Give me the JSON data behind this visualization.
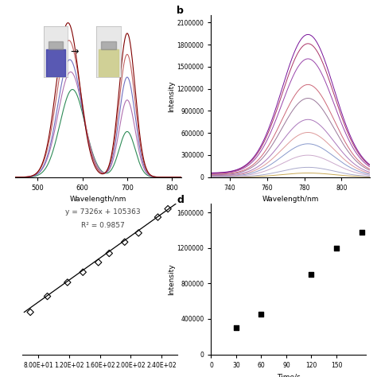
{
  "panel_a": {
    "xlabel": "Wavelength/nm",
    "xlim": [
      450,
      820
    ],
    "xticks": [
      500,
      600,
      700,
      800
    ],
    "curve_params": [
      {
        "color": "#2e8b57",
        "m1": 578,
        "s1": 28,
        "a1": 0.5,
        "m2": 700,
        "s2": 18,
        "a2": 0.26
      },
      {
        "color": "#b070b0",
        "m1": 574,
        "s1": 28,
        "a1": 0.6,
        "m2": 700,
        "s2": 18,
        "a2": 0.44
      },
      {
        "color": "#7070c0",
        "m1": 572,
        "s1": 27,
        "a1": 0.67,
        "m2": 700,
        "s2": 18,
        "a2": 0.57
      },
      {
        "color": "#c06060",
        "m1": 570,
        "s1": 27,
        "a1": 0.78,
        "m2": 700,
        "s2": 18,
        "a2": 0.7
      },
      {
        "color": "#800000",
        "m1": 568,
        "s1": 26,
        "a1": 0.88,
        "m2": 700,
        "s2": 18,
        "a2": 0.82
      }
    ]
  },
  "panel_b": {
    "label": "b",
    "xlabel": "Wavelength/nm",
    "ylabel": "Intensity",
    "xlim": [
      730,
      815
    ],
    "ylim": [
      0,
      2200000
    ],
    "yticks": [
      0,
      300000,
      600000,
      900000,
      1200000,
      1500000,
      1800000,
      2100000
    ],
    "xticks": [
      740,
      760,
      780,
      800
    ],
    "curve_colors": [
      "#c8a855",
      "#aaaacc",
      "#ccaacc",
      "#8899cc",
      "#dd9999",
      "#aa77bb",
      "#997799",
      "#cc6677",
      "#9944aa",
      "#aa3366",
      "#771199"
    ],
    "peak_x": 782,
    "peak_sigma": 14,
    "peak_heights": [
      55000,
      130000,
      290000,
      440000,
      590000,
      760000,
      1040000,
      1220000,
      1560000,
      1760000,
      1880000
    ]
  },
  "panel_c": {
    "equation": "y = 7326x + 105363",
    "r2": "R² = 0.9857",
    "xlim": [
      60,
      260
    ],
    "ylim": [
      0,
      2000000
    ],
    "xticks_labels": [
      "8.00E+01",
      "1.20E+02",
      "1.60E+02",
      "2.00E+02",
      "2.40E+02"
    ],
    "xtick_vals": [
      80,
      120,
      160,
      200,
      240
    ],
    "scatter_x": [
      70,
      92,
      118,
      138,
      158,
      172,
      192,
      210,
      235,
      248
    ],
    "scatter_y": [
      560000,
      770000,
      955000,
      1090000,
      1220000,
      1340000,
      1490000,
      1610000,
      1820000,
      1930000
    ],
    "slope": 7326,
    "intercept": 105363
  },
  "panel_d": {
    "label": "d",
    "xlabel": "Time/s",
    "ylabel": "Intensity",
    "xlim": [
      0,
      185
    ],
    "ylim": [
      0,
      1700000
    ],
    "yticks": [
      0,
      400000,
      800000,
      1200000,
      1600000
    ],
    "xticks": [
      0,
      30,
      60,
      90,
      120,
      150
    ],
    "scatter_x": [
      30,
      60,
      120,
      150,
      180
    ],
    "scatter_y": [
      300000,
      450000,
      900000,
      1200000,
      1380000
    ]
  },
  "figure_bg": "#ffffff"
}
